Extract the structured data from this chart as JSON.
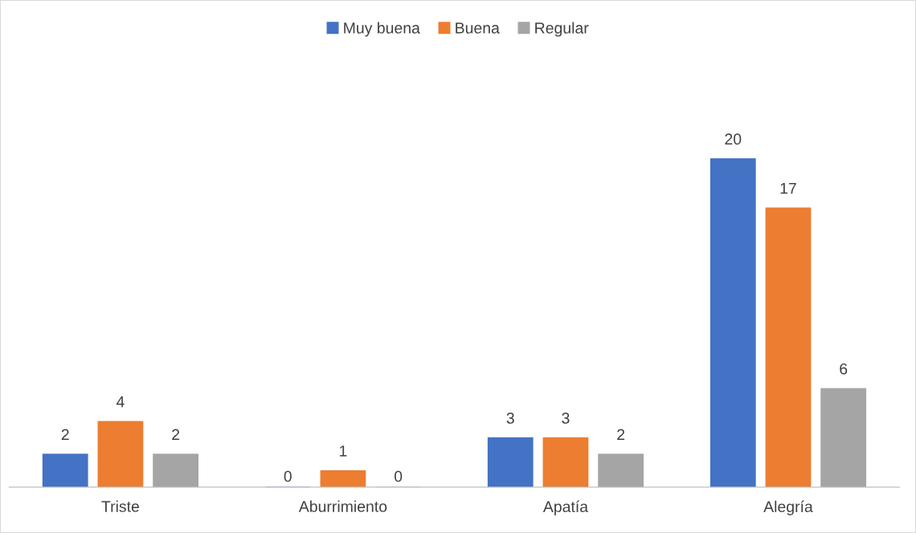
{
  "chart_data": {
    "type": "bar",
    "categories": [
      "Triste",
      "Aburrimiento",
      "Apatía",
      "Alegría"
    ],
    "series": [
      {
        "name": "Muy buena",
        "color": "#4472c4",
        "values": [
          2,
          0,
          3,
          20
        ]
      },
      {
        "name": "Buena",
        "color": "#ed7d31",
        "values": [
          4,
          1,
          3,
          17
        ]
      },
      {
        "name": "Regular",
        "color": "#a5a5a5",
        "values": [
          2,
          0,
          2,
          6
        ]
      }
    ],
    "data_labels": true,
    "legend": "top",
    "grid": false
  }
}
